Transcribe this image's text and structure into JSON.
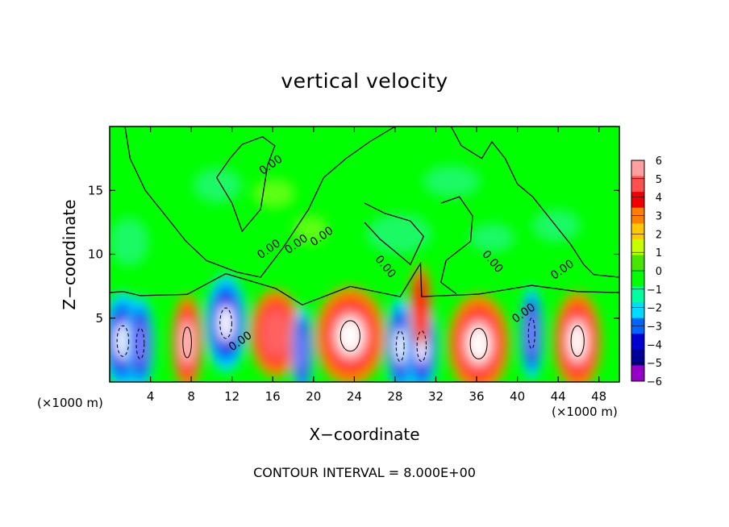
{
  "chart_data": {
    "type": "heatmap",
    "title": "vertical velocity",
    "xlabel": "X−coordinate",
    "ylabel": "Z−coordinate",
    "x_unit_label": "(×1000 m)",
    "y_unit_label": "(×1000 m)",
    "footer": "CONTOUR INTERVAL = 8.000E+00",
    "xlim": [
      0,
      50
    ],
    "ylim": [
      0,
      20
    ],
    "x_ticks": [
      4,
      8,
      12,
      16,
      20,
      24,
      28,
      32,
      36,
      40,
      44,
      48
    ],
    "y_ticks": [
      5,
      10,
      15
    ],
    "contour_labels": [
      "0.00",
      "0.00",
      "0.00",
      "0.00",
      "0.00",
      "0.00",
      "0.00",
      "0.00",
      "0.00"
    ],
    "colorbar": {
      "range": [
        -6,
        6
      ],
      "tick_labels": [
        "6",
        "5",
        "4",
        "3",
        "2",
        "1",
        "0",
        "−1",
        "−2",
        "−3",
        "−4",
        "−5",
        "−6"
      ],
      "colors": [
        "#ff9f9f",
        "#ff5050",
        "#f20000",
        "#ff7f00",
        "#ffc800",
        "#c8ff00",
        "#46e600",
        "#00ff00",
        "#00ffa0",
        "#00dcff",
        "#0064ff",
        "#0000d2",
        "#000096",
        "#9600c8"
      ]
    },
    "cells": [
      {
        "x": 1.3,
        "z": 3.2,
        "w": 1.8,
        "value": -9
      },
      {
        "x": 3.0,
        "z": 3.0,
        "w": 1.2,
        "value": -8
      },
      {
        "x": 7.6,
        "z": 3.1,
        "w": 1.3,
        "value": 8
      },
      {
        "x": 11.4,
        "z": 4.6,
        "w": 1.8,
        "value": -9
      },
      {
        "x": 16.3,
        "z": 3.8,
        "w": 2.2,
        "value": 6
      },
      {
        "x": 18.9,
        "z": 2.4,
        "w": 0.9,
        "value": -7
      },
      {
        "x": 23.6,
        "z": 3.6,
        "w": 3.0,
        "value": 9
      },
      {
        "x": 28.5,
        "z": 2.8,
        "w": 1.2,
        "value": -9
      },
      {
        "x": 30.6,
        "z": 2.8,
        "w": 1.4,
        "value": -9
      },
      {
        "x": 30.5,
        "z": 6.0,
        "w": 0.9,
        "value": 4
      },
      {
        "x": 36.2,
        "z": 3.0,
        "w": 2.6,
        "value": 9
      },
      {
        "x": 41.4,
        "z": 3.8,
        "w": 1.0,
        "value": -8
      },
      {
        "x": 45.9,
        "z": 3.2,
        "w": 2.0,
        "value": 9
      }
    ]
  }
}
